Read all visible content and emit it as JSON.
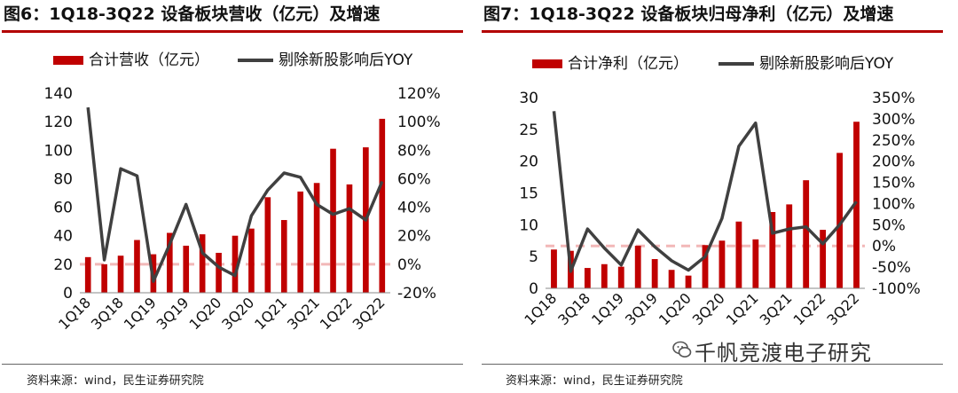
{
  "figure_left": {
    "title": "图6：1Q18-3Q22 设备板块营收（亿元）及增速",
    "source": "资料来源：wind，民生证券研究院"
  },
  "figure_right": {
    "title": "图7：1Q18-3Q22 设备板块归母净利（亿元）及增速",
    "source": "资料来源：wind，民生证券研究院"
  },
  "watermark": "千帆竞渡电子研究",
  "colors": {
    "bar": "#c00000",
    "line": "#404040",
    "zero_line": "#f2b8b8"
  },
  "chart_data": [
    {
      "type": "bar",
      "title": "1Q18-3Q22 设备板块营收（亿元）及增速",
      "categories": [
        "1Q18",
        "2Q18",
        "3Q18",
        "4Q18",
        "1Q19",
        "2Q19",
        "3Q19",
        "4Q19",
        "1Q20",
        "2Q20",
        "3Q20",
        "4Q20",
        "1Q21",
        "2Q21",
        "3Q21",
        "4Q21",
        "1Q22",
        "2Q22",
        "3Q22"
      ],
      "tick_labels": [
        "1Q18",
        "3Q18",
        "1Q19",
        "3Q19",
        "1Q20",
        "3Q20",
        "1Q21",
        "3Q21",
        "1Q22",
        "3Q22"
      ],
      "series": [
        {
          "name": "合计营收（亿元）",
          "kind": "bar",
          "axis": "left",
          "values": [
            25,
            20,
            26,
            37,
            27,
            42,
            33,
            41,
            28,
            40,
            45,
            67,
            51,
            71,
            77,
            101,
            76,
            102,
            122
          ]
        },
        {
          "name": "剔除新股影响后YOY",
          "kind": "line",
          "axis": "right",
          "unit": "%",
          "values": [
            110,
            3,
            67,
            62,
            -12,
            14,
            42,
            8,
            -2,
            -8,
            34,
            52,
            64,
            61,
            42,
            35,
            39,
            31,
            58
          ]
        }
      ],
      "y_left": {
        "min": 0,
        "max": 140,
        "ticks": [
          "0",
          "20",
          "40",
          "60",
          "80",
          "100",
          "120",
          "140"
        ]
      },
      "y_right": {
        "min": -20,
        "max": 120,
        "ticks": [
          "-20%",
          "0%",
          "20%",
          "40%",
          "60%",
          "80%",
          "100%",
          "120%"
        ]
      }
    },
    {
      "type": "bar",
      "title": "1Q18-3Q22 设备板块归母净利（亿元）及增速",
      "categories": [
        "1Q18",
        "2Q18",
        "3Q18",
        "4Q18",
        "1Q19",
        "2Q19",
        "3Q19",
        "4Q19",
        "1Q20",
        "2Q20",
        "3Q20",
        "4Q20",
        "1Q21",
        "2Q21",
        "3Q21",
        "4Q21",
        "1Q22",
        "2Q22",
        "3Q22"
      ],
      "tick_labels": [
        "1Q18",
        "3Q18",
        "1Q19",
        "3Q19",
        "1Q20",
        "3Q20",
        "1Q21",
        "3Q21",
        "1Q22",
        "3Q22"
      ],
      "series": [
        {
          "name": "合计净利（亿元）",
          "kind": "bar",
          "axis": "left",
          "values": [
            6.1,
            5.9,
            3.2,
            3.8,
            3.4,
            6.7,
            4.6,
            2.9,
            2.0,
            6.8,
            7.5,
            10.5,
            7.7,
            12.0,
            13.2,
            17.0,
            9.2,
            21.3,
            26.2
          ]
        },
        {
          "name": "剔除新股影响后YOY",
          "kind": "line",
          "axis": "right",
          "unit": "%",
          "values": [
            318,
            -60,
            40,
            -5,
            -45,
            38,
            -2,
            -35,
            -57,
            -25,
            65,
            235,
            290,
            30,
            40,
            45,
            5,
            50,
            105
          ]
        }
      ],
      "y_left": {
        "min": 0,
        "max": 30,
        "ticks": [
          "0",
          "5",
          "10",
          "15",
          "20",
          "25",
          "30"
        ]
      },
      "y_right": {
        "min": -100,
        "max": 350,
        "ticks": [
          "-100%",
          "-50%",
          "0%",
          "50%",
          "100%",
          "150%",
          "200%",
          "250%",
          "300%",
          "350%"
        ]
      }
    }
  ]
}
